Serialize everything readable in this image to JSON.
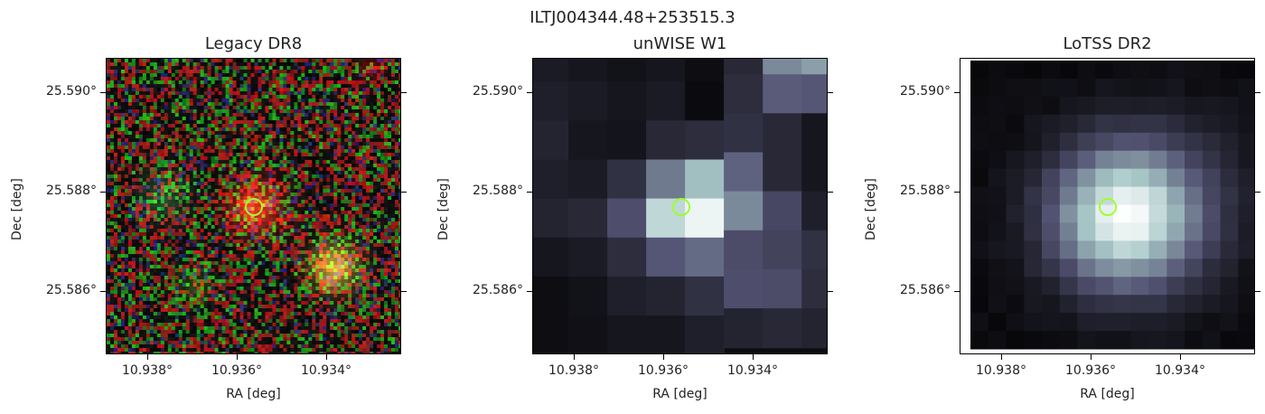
{
  "figure": {
    "suptitle": "ILTJ004344.48+253515.3"
  },
  "panels": [
    {
      "title": "Legacy DR8",
      "xlabel": "RA [deg]",
      "ylabel": "Dec [deg]",
      "xticks": [
        "10.938°",
        "10.936°",
        "10.934°"
      ],
      "yticks": [
        "25.590°",
        "25.588°",
        "25.586°"
      ],
      "image": "noisy optical RGB cutout with red central source and yellowish galaxy lower-right"
    },
    {
      "title": "unWISE W1",
      "xlabel": "RA [deg]",
      "ylabel": "Dec [deg]",
      "xticks": [
        "10.938°",
        "10.936°",
        "10.934°"
      ],
      "yticks": [
        "25.590°",
        "25.588°",
        "25.586°"
      ],
      "image": "coarse pixelated bone-colormap infrared cutout"
    },
    {
      "title": "LoTSS DR2",
      "xlabel": "RA [deg]",
      "ylabel": "Dec [deg]",
      "xticks": [
        "10.938°",
        "10.936°",
        "10.934°"
      ],
      "yticks": [
        "25.590°",
        "25.588°",
        "25.586°"
      ],
      "image": "pixelated bone-colormap radio cutout with bright central blob"
    }
  ],
  "colors": {
    "marker": "#9cff2e",
    "axis": "#000000"
  }
}
